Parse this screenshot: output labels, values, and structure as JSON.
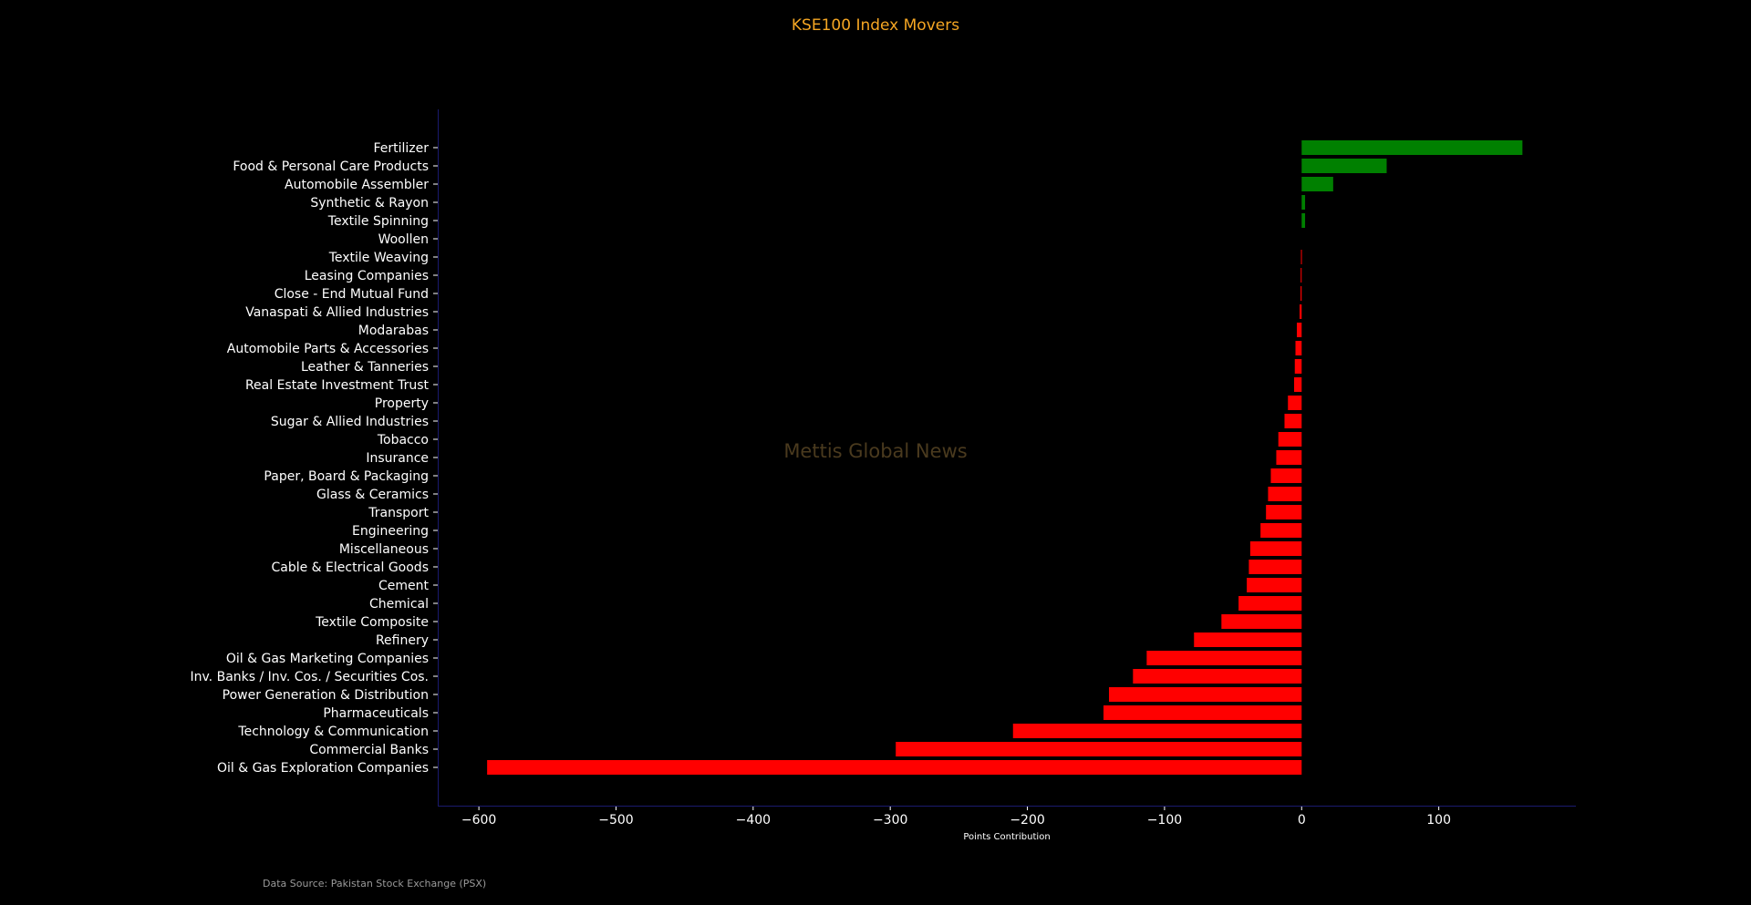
{
  "chart_data": {
    "type": "bar",
    "orientation": "horizontal",
    "title": "KSE100 Index Movers",
    "xlabel": "Points Contribution",
    "ylabel": "",
    "xlim": [
      -630,
      200
    ],
    "xticks": [
      -600,
      -500,
      -400,
      -300,
      -200,
      -100,
      0,
      100
    ],
    "categories": [
      "Fertilizer",
      "Food & Personal Care Products",
      "Automobile Assembler",
      "Synthetic & Rayon",
      "Textile Spinning",
      "Woollen",
      "Textile Weaving",
      "Leasing Companies",
      "Close - End Mutual Fund",
      "Vanaspati & Allied Industries",
      "Modarabas",
      "Automobile Parts & Accessories",
      "Leather & Tanneries",
      "Real Estate Investment Trust",
      "Property",
      "Sugar & Allied Industries",
      "Tobacco",
      "Insurance",
      "Paper, Board & Packaging",
      "Glass & Ceramics",
      "Transport",
      "Engineering",
      "Miscellaneous",
      "Cable & Electrical Goods",
      "Cement",
      "Chemical",
      "Textile Composite",
      "Refinery",
      "Oil & Gas Marketing Companies",
      "Inv. Banks / Inv. Cos. / Securities Cos.",
      "Power Generation & Distribution",
      "Pharmaceuticals",
      "Technology & Communication",
      "Commercial Banks",
      "Oil & Gas Exploration Companies"
    ],
    "values": [
      161,
      62,
      23,
      2.5,
      2.5,
      0,
      -0.5,
      -0.7,
      -0.8,
      -1.5,
      -3.5,
      -4.5,
      -5,
      -5.5,
      -10,
      -12.5,
      -17,
      -18.5,
      -22.5,
      -24.5,
      -26,
      -30,
      -37.5,
      -38.5,
      -40,
      -46,
      -58.5,
      -78.5,
      -113,
      -123,
      -140.5,
      -144.5,
      -210.5,
      -296,
      -594
    ],
    "colors": {
      "positive": "#008000",
      "negative": "#ff0000",
      "axis": "#1a1a6e"
    },
    "grid": false,
    "legend": "none"
  },
  "watermark": "Mettis Global News",
  "source_note": "Data Source: Pakistan Stock Exchange (PSX)"
}
